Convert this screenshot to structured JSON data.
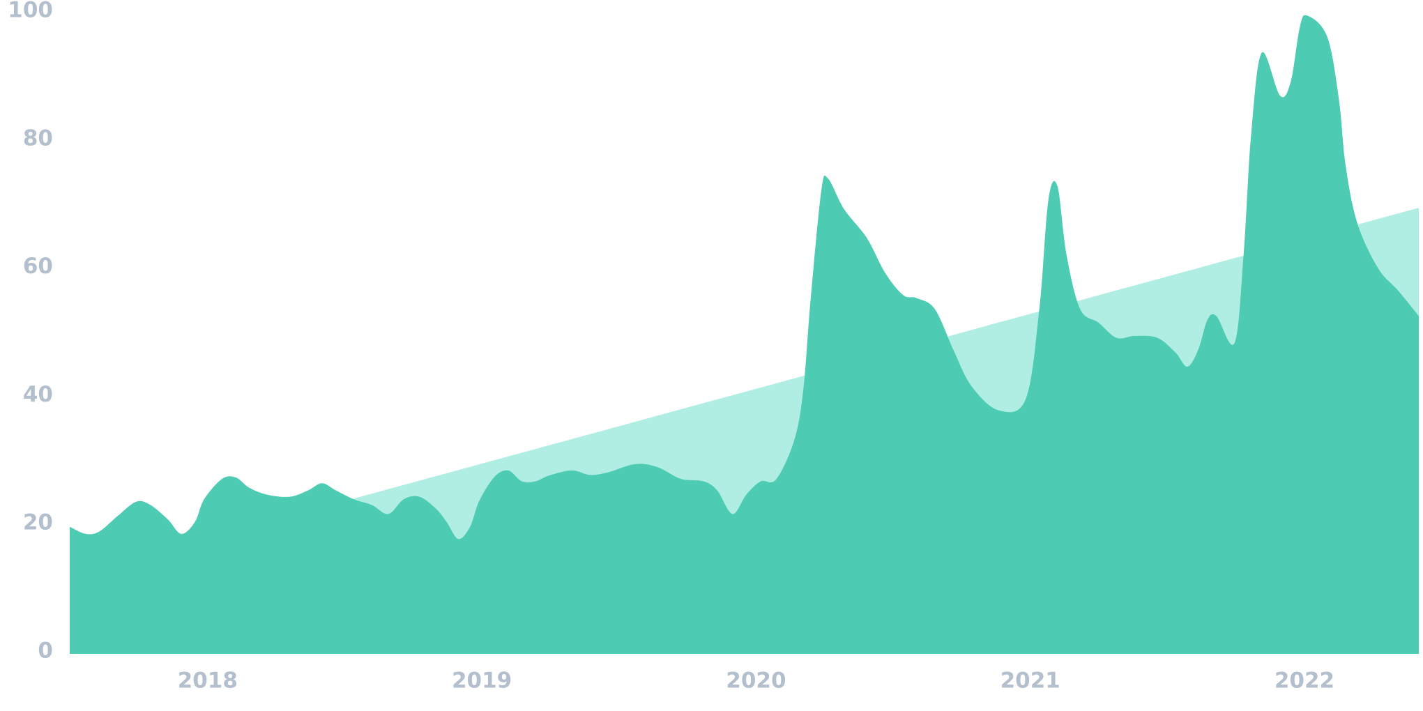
{
  "chart_data": {
    "type": "area",
    "xlim": [
      2017.497,
      2022.417
    ],
    "xticks": [
      2018,
      2019,
      2020,
      2021,
      2022
    ],
    "ylim": [
      0,
      100
    ],
    "yticks": [
      0,
      20,
      40,
      60,
      80,
      100
    ],
    "grid": false,
    "series": [
      {
        "color": "#b0eee3",
        "x": [
          2017.497,
          2022.417
        ],
        "values": [
          11.8,
          69.3
        ]
      },
      {
        "color": "#4ecbb3",
        "x": [
          2017.497,
          2017.556,
          2017.606,
          2017.672,
          2017.738,
          2017.788,
          2017.854,
          2017.904,
          2017.954,
          2017.987,
          2018.053,
          2018.103,
          2018.152,
          2018.219,
          2018.301,
          2018.367,
          2018.417,
          2018.467,
          2018.533,
          2018.599,
          2018.659,
          2018.715,
          2018.772,
          2018.831,
          2018.871,
          2018.914,
          2018.957,
          2018.99,
          2019.046,
          2019.096,
          2019.146,
          2019.195,
          2019.245,
          2019.328,
          2019.394,
          2019.46,
          2019.56,
          2019.642,
          2019.725,
          2019.808,
          2019.858,
          2019.914,
          2019.964,
          2020.017,
          2020.073,
          2020.139,
          2020.172,
          2020.199,
          2020.238,
          2020.262,
          2020.321,
          2020.404,
          2020.47,
          2020.536,
          2020.586,
          2020.652,
          2020.719,
          2020.785,
          2020.884,
          2020.983,
          2021.033,
          2021.066,
          2021.099,
          2021.132,
          2021.182,
          2021.248,
          2021.315,
          2021.381,
          2021.464,
          2021.53,
          2021.573,
          2021.613,
          2021.646,
          2021.679,
          2021.745,
          2021.778,
          2021.805,
          2021.844,
          2021.911,
          2021.95,
          2021.983,
          2022.01,
          2022.083,
          2022.126,
          2022.149,
          2022.192,
          2022.268,
          2022.341,
          2022.417
        ],
        "values": [
          19.5,
          18.4,
          18.8,
          21.2,
          23.4,
          23,
          20.7,
          18.4,
          20.3,
          23.8,
          27,
          27.2,
          25.6,
          24.5,
          24.2,
          25.2,
          26.3,
          25.2,
          23.8,
          22.9,
          21.5,
          23.8,
          24.2,
          22.4,
          20.3,
          17.6,
          19.5,
          23.5,
          27.3,
          28.3,
          26.6,
          26.6,
          27.5,
          28.3,
          27.6,
          28,
          29.3,
          28.8,
          27,
          26.6,
          25.2,
          21.5,
          24.5,
          26.6,
          26.9,
          33,
          40.8,
          55,
          72,
          73.9,
          69.1,
          64.6,
          59.2,
          55.7,
          55.2,
          53.5,
          47.2,
          41.5,
          37.7,
          39.4,
          53.5,
          70.5,
          72.7,
          62,
          53.5,
          51.4,
          49,
          49.3,
          49,
          46.7,
          44.5,
          47.2,
          51.8,
          52.4,
          48.2,
          62,
          80.5,
          93.5,
          86.8,
          89,
          97.5,
          99.3,
          96,
          86.1,
          76.2,
          67,
          59.9,
          56.4,
          52.4
        ]
      }
    ]
  }
}
